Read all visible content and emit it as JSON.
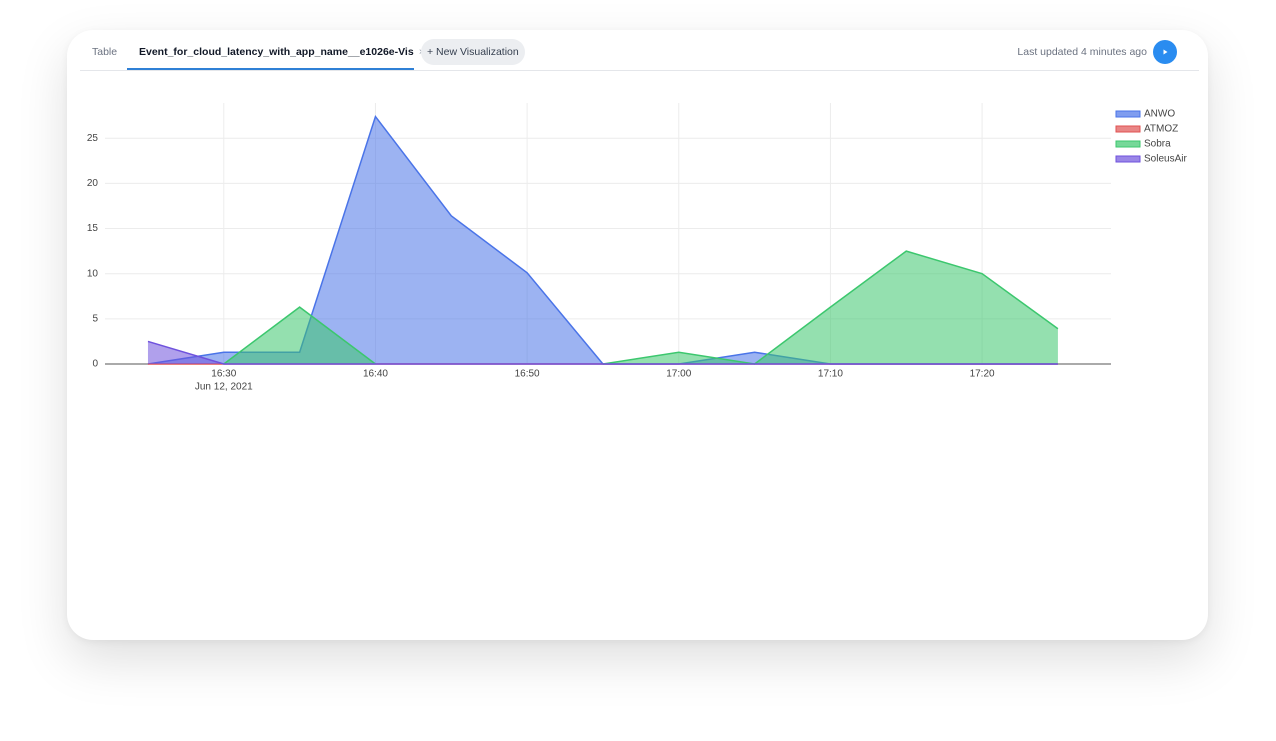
{
  "tabs": [
    {
      "label": "Table",
      "active": false
    },
    {
      "label": "Event_for_cloud_latency_with_app_name__e1026e-Vis",
      "active": true
    }
  ],
  "new_tab_button": "+ New Visualization",
  "last_updated": "Last updated 4 minutes ago",
  "chart_data": {
    "type": "area",
    "x": [
      "2021-06-12 16:25",
      "2021-06-12 16:30",
      "2021-06-12 16:35",
      "2021-06-12 16:40",
      "2021-06-12 16:45",
      "2021-06-12 16:50",
      "2021-06-12 16:55",
      "2021-06-12 17:00",
      "2021-06-12 17:05",
      "2021-06-12 17:10",
      "2021-06-12 17:15",
      "2021-06-12 17:20",
      "2021-06-12 17:25"
    ],
    "series": [
      {
        "name": "ANWO",
        "color": "#4a74e8",
        "values": [
          0,
          1.3,
          1.3,
          27.4,
          16.4,
          10.1,
          0,
          0,
          1.3,
          0,
          0,
          0,
          0
        ]
      },
      {
        "name": "ATMOZ",
        "color": "#e05252",
        "values": [
          0,
          0,
          0,
          0,
          0,
          0,
          0,
          0,
          0,
          0,
          0,
          0,
          0
        ]
      },
      {
        "name": "Sobra",
        "color": "#3cc76e",
        "values": [
          null,
          0,
          6.3,
          0,
          null,
          null,
          0,
          1.3,
          0,
          6.3,
          12.5,
          10,
          3.9
        ]
      },
      {
        "name": "SoleusAir",
        "color": "#6f52dd",
        "values": [
          2.5,
          0,
          0,
          0,
          0,
          0,
          0,
          0,
          0,
          0,
          0,
          0,
          0
        ]
      }
    ],
    "xlim": [
      "2021-06-12 16:22:10",
      "2021-06-12 17:28:30"
    ],
    "xticks": [
      {
        "value": "2021-06-12 16:30",
        "label": "16:30"
      },
      {
        "value": "2021-06-12 16:40",
        "label": "16:40"
      },
      {
        "value": "2021-06-12 16:50",
        "label": "16:50"
      },
      {
        "value": "2021-06-12 17:00",
        "label": "17:00"
      },
      {
        "value": "2021-06-12 17:10",
        "label": "17:10"
      },
      {
        "value": "2021-06-12 17:20",
        "label": "17:20"
      }
    ],
    "x_date_label": "Jun 12, 2021",
    "ylim": [
      0,
      28.9
    ],
    "yticks": [
      0,
      5,
      10,
      15,
      20,
      25
    ],
    "grid": true,
    "legend": "top-right"
  }
}
